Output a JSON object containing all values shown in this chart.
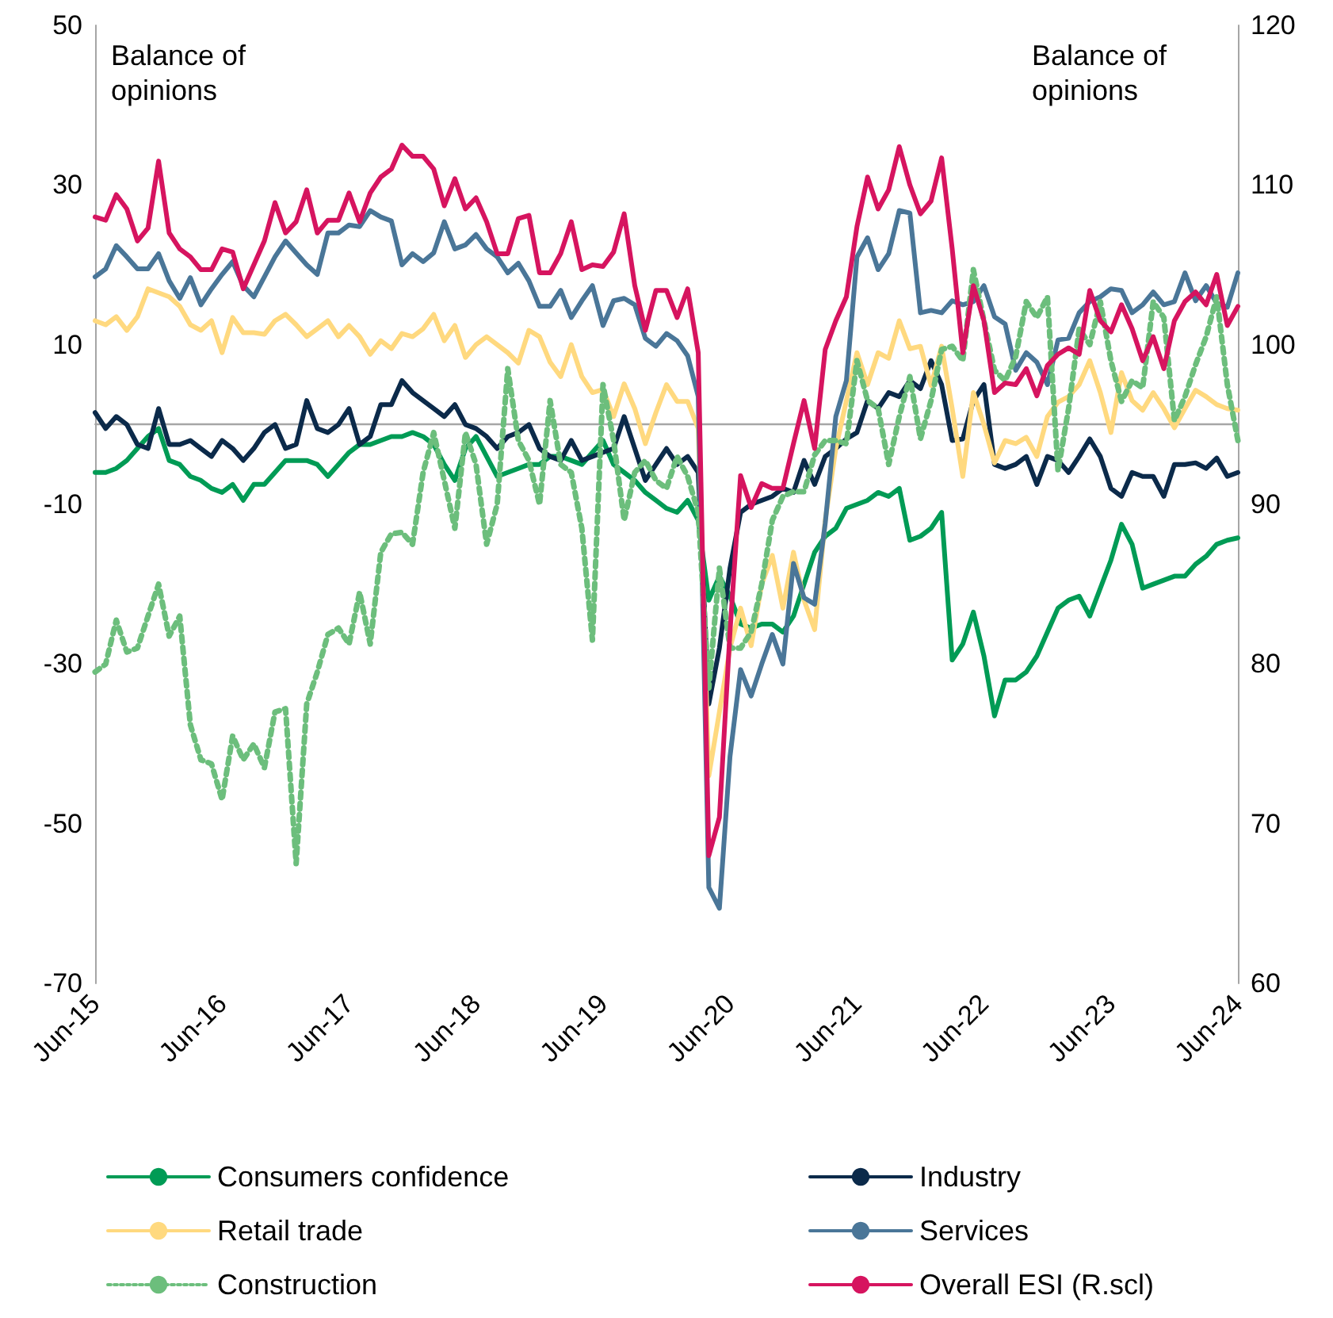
{
  "chart_data": {
    "type": "line",
    "ylabel": "Balance of opinions",
    "y2label": "Balance of opinions",
    "categories": [
      "Jun-15",
      null,
      null,
      null,
      null,
      null,
      null,
      null,
      null,
      null,
      null,
      null,
      "Jun-16",
      null,
      null,
      null,
      null,
      null,
      null,
      null,
      null,
      null,
      null,
      null,
      "Jun-17",
      null,
      null,
      null,
      null,
      null,
      null,
      null,
      null,
      null,
      null,
      null,
      "Jun-18",
      null,
      null,
      null,
      null,
      null,
      null,
      null,
      null,
      null,
      null,
      null,
      "Jun-19",
      null,
      null,
      null,
      null,
      null,
      null,
      null,
      null,
      null,
      null,
      null,
      "Jun-20",
      null,
      null,
      null,
      null,
      null,
      null,
      null,
      null,
      null,
      null,
      null,
      "Jun-21",
      null,
      null,
      null,
      null,
      null,
      null,
      null,
      null,
      null,
      null,
      null,
      "Jun-22",
      null,
      null,
      null,
      null,
      null,
      null,
      null,
      null,
      null,
      null,
      null,
      "Jun-23",
      null,
      null,
      null,
      null,
      null,
      null,
      null,
      null,
      null,
      null,
      null,
      "Jun-24"
    ],
    "series": [
      {
        "name": "Consumers confidence",
        "color": "#009b55",
        "values": [
          -6,
          -6,
          -5.5,
          -4.5,
          -3,
          -1.5,
          -0.5,
          -4.5,
          -5,
          -6.5,
          -7,
          -8,
          -8.5,
          -7.5,
          -9.5,
          -7.5,
          -7.5,
          -6,
          -4.5,
          -4.5,
          -4.5,
          -5,
          -6.5,
          -5,
          -3.5,
          -2.5,
          -2.5,
          -2,
          -1.5,
          -1.5,
          -1,
          -1.5,
          -2.5,
          -5,
          -7,
          -3,
          -1.5,
          -4,
          -6.5,
          -6,
          -5.5,
          -5,
          -5,
          -4,
          -4,
          -4.5,
          -5,
          -3.5,
          -2,
          -5,
          -6,
          -7,
          -8.5,
          -9.5,
          -10.5,
          -11,
          -9.5,
          -12,
          -22,
          -19,
          -21.5,
          -25,
          -25.5,
          -25,
          -25,
          -26,
          -24,
          -20,
          -16,
          -14,
          -13,
          -10.5,
          -10,
          -9.5,
          -8.5,
          -9,
          -8,
          -14.5,
          -14,
          -13,
          -11,
          -29.5,
          -27.5,
          -23.5,
          -29,
          -36.5,
          -32,
          -32,
          -31,
          -29,
          -26,
          -23,
          -22,
          -21.5,
          -24,
          -20.5,
          -17,
          -12.5,
          -15,
          -20.5,
          -20,
          -19.5,
          -19,
          -19,
          -17.5,
          -16.5,
          -15,
          -14.5,
          -14.2
        ]
      },
      {
        "name": "Industry",
        "color": "#0b2a4a",
        "values": [
          1.5,
          -0.5,
          1,
          0,
          -2.5,
          -3,
          2,
          -2.5,
          -2.5,
          -2,
          -3,
          -4,
          -2,
          -3,
          -4.5,
          -3,
          -1,
          0,
          -3,
          -2.5,
          3,
          -0.5,
          -1,
          0,
          2,
          -2.5,
          -1.5,
          2.5,
          2.5,
          5.5,
          4,
          3,
          2,
          1,
          2.5,
          0,
          -0.5,
          -1.5,
          -3,
          -1.5,
          -1,
          0,
          -3,
          -4,
          -4.5,
          -2,
          -4.5,
          -4,
          -3.5,
          -3,
          1,
          -3,
          -7,
          -5,
          -3,
          -5,
          -4,
          -6,
          -35,
          -28,
          -18,
          -11,
          -10,
          -9.5,
          -9,
          -8,
          -8.5,
          -4.5,
          -7.5,
          -4,
          -3,
          -1.8,
          -1,
          3,
          2,
          4,
          3.5,
          5.5,
          4.5,
          8,
          5,
          -2,
          -1.8,
          3,
          5,
          -5,
          -5.5,
          -5,
          -4,
          -7.5,
          -4,
          -4.5,
          -6,
          -4,
          -1.8,
          -4,
          -8,
          -9,
          -6,
          -6.5,
          -6.5,
          -9,
          -5,
          -5,
          -4.8,
          -5.5,
          -4.2,
          -6.5,
          -6
        ]
      },
      {
        "name": "Retail trade",
        "color": "#ffd97f",
        "values": [
          13,
          12.5,
          13.5,
          11.8,
          13.5,
          17,
          16.5,
          16,
          14.8,
          12.5,
          11.8,
          13,
          9,
          13.4,
          11.5,
          11.5,
          11.3,
          13,
          13.8,
          12.5,
          11,
          12,
          13,
          11,
          12.4,
          11,
          8.8,
          10.5,
          9.5,
          11.4,
          11,
          12,
          13.8,
          10.5,
          12.4,
          8.4,
          10,
          11,
          10,
          9,
          7.7,
          11.8,
          11,
          7.8,
          6,
          10,
          6,
          4,
          4.4,
          1,
          5.1,
          2,
          -2.4,
          1.5,
          5,
          2.9,
          2.9,
          -0.5,
          -44,
          -36,
          -28,
          -23,
          -27.7,
          -20,
          -16.4,
          -23,
          -16,
          -22,
          -25.7,
          -12,
          -3,
          3,
          9,
          5,
          9,
          8.3,
          13,
          9.5,
          9.8,
          4.9,
          9.8,
          2,
          -6.5,
          4,
          0,
          -4.8,
          -2,
          -2.4,
          -1.6,
          -4,
          1,
          2.8,
          3.5,
          5,
          8,
          4,
          -1,
          6.5,
          3,
          1.8,
          4,
          2,
          -0.4,
          2,
          4.3,
          3.5,
          2.5,
          2,
          1.8
        ]
      },
      {
        "name": "Services",
        "color": "#4a7698",
        "values": [
          18.5,
          19.5,
          22.4,
          21,
          19.5,
          19.5,
          21.4,
          18,
          15.8,
          18.4,
          15,
          17,
          18.8,
          20.4,
          17.4,
          16,
          18.5,
          21,
          23,
          21.5,
          20,
          18.8,
          24,
          24,
          25,
          24.8,
          26.8,
          26,
          25.5,
          20,
          21.4,
          20.4,
          21.5,
          25.4,
          22,
          22.5,
          23.8,
          22,
          21,
          19,
          20.2,
          18,
          14.8,
          14.8,
          16.8,
          13.4,
          15.5,
          17.4,
          12.4,
          15.5,
          15.8,
          15,
          10.8,
          9.8,
          11.4,
          10.5,
          8.6,
          3.5,
          -58,
          -60.6,
          -41.6,
          -30.7,
          -34,
          -30,
          -26.3,
          -30,
          -17.4,
          -21.7,
          -22.5,
          -12.4,
          1,
          5.5,
          21,
          23.4,
          19.4,
          21.4,
          26.8,
          26.5,
          14,
          14.3,
          14,
          15.5,
          15,
          15.4,
          17.4,
          13.5,
          12.6,
          6.8,
          9,
          7.8,
          5,
          10.6,
          10.8,
          14,
          15.4,
          16,
          17,
          16.8,
          14,
          15,
          16.6,
          15,
          15.4,
          19,
          15.5,
          17.4,
          15.2,
          14.7,
          19
        ]
      },
      {
        "name": "Construction",
        "color": "#6cbe7c",
        "line_style": "dotted",
        "values": [
          -31,
          -30,
          -24.5,
          -28.5,
          -28,
          -24,
          -20,
          -26.5,
          -24,
          -37.6,
          -42,
          -42.5,
          -47,
          -39,
          -42,
          -40,
          -43,
          -36,
          -35.6,
          -55,
          -35,
          -31,
          -26.3,
          -25.5,
          -27.5,
          -21,
          -27.5,
          -16,
          -13.7,
          -13.5,
          -15,
          -6,
          -1,
          -7,
          -13,
          -1,
          -5,
          -15,
          -10,
          7,
          -2,
          -4.5,
          -10,
          3,
          -5,
          -6,
          -13,
          -27,
          5,
          -2,
          -12,
          -6,
          -4.5,
          -7,
          -8,
          -4,
          -6.5,
          -11,
          -33,
          -18,
          -28,
          -28,
          -26,
          -20,
          -12,
          -9,
          -8.4,
          -8.4,
          -3.8,
          -2,
          -2,
          -2.4,
          8,
          3,
          2,
          -5,
          1,
          6,
          -1.8,
          3,
          9.4,
          9.8,
          8,
          19.4,
          13,
          6.8,
          5.5,
          8.5,
          15.4,
          13.4,
          16,
          -5.8,
          2,
          12,
          10,
          15.4,
          8,
          2.9,
          5.5,
          4.6,
          15.4,
          13.4,
          0.5,
          3.5,
          7.5,
          11,
          16,
          5,
          -2
        ]
      },
      {
        "name": "Overall ESI (R.scl)",
        "color": "#d6145f",
        "axis": "y2",
        "values": [
          108,
          107.8,
          109.4,
          108.5,
          106.5,
          107.3,
          111.5,
          107,
          106,
          105.5,
          104.7,
          104.7,
          106,
          105.8,
          103.5,
          105,
          106.5,
          108.9,
          107,
          107.7,
          109.7,
          107,
          107.8,
          107.8,
          109.5,
          107.7,
          109.5,
          110.5,
          111,
          112.5,
          111.8,
          111.8,
          111,
          108.7,
          110.4,
          108.5,
          109.2,
          107.7,
          105.7,
          105.7,
          107.9,
          108.1,
          104.5,
          104.5,
          105.7,
          107.7,
          104.7,
          105,
          104.9,
          105.8,
          108.2,
          103.7,
          100.9,
          103.4,
          103.4,
          101.7,
          103.5,
          99.5,
          68,
          70.4,
          82,
          91.8,
          89.8,
          91.3,
          91,
          91,
          93.8,
          96.5,
          93.5,
          99.7,
          101.5,
          103,
          107.4,
          110.5,
          108.5,
          109.7,
          112.4,
          110,
          108.2,
          109,
          111.7,
          106,
          99.5,
          103.7,
          101.5,
          97,
          97.6,
          97.5,
          98.5,
          96.8,
          98.7,
          99.4,
          99.8,
          99.4,
          103.4,
          101.5,
          100.8,
          102.5,
          101,
          99,
          100.5,
          98.5,
          101.5,
          102.7,
          103.3,
          102.5,
          104.4,
          101.2,
          102.4
        ]
      }
    ],
    "ylim": [
      -70,
      50
    ],
    "yticks": [
      -70,
      -50,
      -30,
      -10,
      10,
      30,
      50
    ],
    "y2lim": [
      60,
      120
    ],
    "y2ticks": [
      60,
      70,
      80,
      90,
      100,
      110,
      120
    ],
    "ref_lines": [
      {
        "axis": "y",
        "value": 0,
        "color": "#a6a6a6"
      }
    ],
    "grid": false,
    "legend": "bottom",
    "marker": "none",
    "line_style": "solid"
  }
}
